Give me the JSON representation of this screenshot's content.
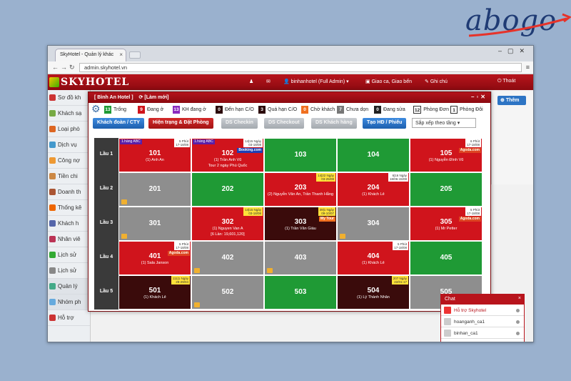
{
  "brand_logo": {
    "text": "abogo"
  },
  "browser": {
    "tab_title": "SkyHotel - Quản lý khác",
    "url": "admin.skyhotel.vn"
  },
  "app": {
    "name": "SKYHOTEL",
    "user": "binhanhotel (Full Admin)",
    "shift_label": "Giao ca, Giao bến",
    "notes_label": "Ghi chú",
    "logout_label": "Thoát"
  },
  "sidebar": {
    "items": [
      {
        "label": "Sơ đồ kh"
      },
      {
        "label": "Khách sạ"
      },
      {
        "label": "Loại phò"
      },
      {
        "label": "Dịch vụ"
      },
      {
        "label": "Công nợ"
      },
      {
        "label": "Tiền chi"
      },
      {
        "label": "Doanh th"
      },
      {
        "label": "Thống kê"
      },
      {
        "label": "Khách h"
      },
      {
        "label": "Nhân viê"
      },
      {
        "label": "Lịch sử"
      },
      {
        "label": "Lịch sử"
      },
      {
        "label": "Quản lý"
      },
      {
        "label": "Nhóm ph"
      },
      {
        "label": "Hỗ trợ"
      }
    ]
  },
  "right": {
    "add_label": "Thêm"
  },
  "modal": {
    "title": "[ Bình An Hotel ]",
    "refresh": "[Làm mới]"
  },
  "legend": [
    {
      "count": "13",
      "label": "Trống",
      "color": "#1f9a35"
    },
    {
      "count": "9",
      "label": "Đang ở",
      "color": "#d0141c"
    },
    {
      "count": "13",
      "label": "KH đang ở",
      "color": "#8a2ac0"
    },
    {
      "count": "0",
      "label": "Đến hạn C/O",
      "color": "#2c0b0b"
    },
    {
      "count": "3",
      "label": "Quá hạn C/O",
      "color": "#2c0b0b"
    },
    {
      "count": "0",
      "label": "Chờ khách",
      "color": "#f07020"
    },
    {
      "count": "7",
      "label": "Chưa dọn",
      "color": "#777777"
    },
    {
      "count": "0",
      "label": "Đang sửa",
      "color": "#222222"
    },
    {
      "count": "12",
      "label": "Phòng Đơn",
      "color": "#ffffff"
    },
    {
      "count": "1",
      "label": "Phòng Đôi",
      "color": "#ffffff"
    }
  ],
  "toolbar": {
    "b1": "Khách đoàn / CTY",
    "b2": "Hiện trạng & Đặt Phòng",
    "b3": "DS Checkin",
    "b4": "DS Checkout",
    "b5": "DS Khách hàng",
    "b6": "Tạo HĐ / Phiếu",
    "sort": "Sắp xếp theo tầng"
  },
  "floors": [
    {
      "label": "Lầu 1",
      "rooms": [
        {
          "num": "101",
          "guest": "(1) Anh An",
          "status": "red",
          "tag": "1.hàng ABC",
          "time": "5 Phút\n17-18/08"
        },
        {
          "num": "102",
          "guest": "(1) Trần Anh Vũ",
          "extra": "Tour 2 ngày Phú Quốc",
          "status": "red",
          "tag": "1.hàng ABC",
          "time": "14|15 Ngày\n03-18/08",
          "ota": "Booking.com"
        },
        {
          "num": "103",
          "status": "green"
        },
        {
          "num": "104",
          "status": "green"
        },
        {
          "num": "105",
          "guest": "(1) Nguyễn Đình Vũ",
          "status": "red",
          "time": "6 Phút\n17-18/08",
          "ota": "Agoda.com"
        }
      ]
    },
    {
      "label": "Lầu 2",
      "rooms": [
        {
          "num": "201",
          "status": "gray",
          "clean": true
        },
        {
          "num": "202",
          "status": "green"
        },
        {
          "num": "203",
          "guest": "(2) Nguyễn Văn An, Trần Thanh Hằng",
          "status": "red",
          "time": "14|22 Ngày\n03-25/08"
        },
        {
          "num": "204",
          "guest": "(1) Khách Lẻ",
          "status": "red",
          "time": "6|16 Ngày\n18/06-15/08"
        },
        {
          "num": "205",
          "status": "green"
        }
      ]
    },
    {
      "label": "Lầu 3",
      "rooms": [
        {
          "num": "301",
          "status": "gray",
          "clean": true
        },
        {
          "num": "302",
          "guest": "(1) Nguyen Van A",
          "extra": "[6 Lần: 19,601,120]",
          "status": "red",
          "time": "14|15 Ngày\n03-18/08"
        },
        {
          "num": "303",
          "guest": "(1) Trần Văn Giàu",
          "status": "dark",
          "time": "39|1 Ngày\n09-10/07",
          "tour": "My Tour"
        },
        {
          "num": "304",
          "status": "gray",
          "clean": true
        },
        {
          "num": "305",
          "guest": "(1) Mr Petter",
          "status": "red",
          "time": "5 Phút\n17-18/08",
          "ota": "Agoda.com"
        }
      ]
    },
    {
      "label": "Lầu 4",
      "rooms": [
        {
          "num": "401",
          "guest": "(1) Sala Janson",
          "status": "red",
          "time": "5 Phút\n17-18/08",
          "ota": "Agoda.com"
        },
        {
          "num": "402",
          "status": "gray",
          "clean": true
        },
        {
          "num": "403",
          "status": "gray",
          "clean": true
        },
        {
          "num": "404",
          "guest": "(1) Khách Lẻ",
          "status": "red",
          "time": "5 Phút\n17-18/08"
        },
        {
          "num": "405",
          "status": "green"
        }
      ]
    },
    {
      "label": "Lầu 5",
      "rooms": [
        {
          "num": "501",
          "guest": "(1) Khách Lẻ",
          "status": "dark",
          "time": "111|1 Ngày\n28-29/04"
        },
        {
          "num": "502",
          "status": "gray",
          "clean": true
        },
        {
          "num": "503",
          "status": "green"
        },
        {
          "num": "504",
          "guest": "(1) Lý Thành Nhân",
          "status": "dark",
          "time": "207 Ngày\n22/01-17"
        },
        {
          "num": "505",
          "status": "gray"
        }
      ]
    }
  ],
  "chat": {
    "title": "Chat",
    "support": "Hỗ trợ Skyhotel",
    "users": [
      "hoanganh_ca1",
      "binhan_ca1"
    ]
  }
}
